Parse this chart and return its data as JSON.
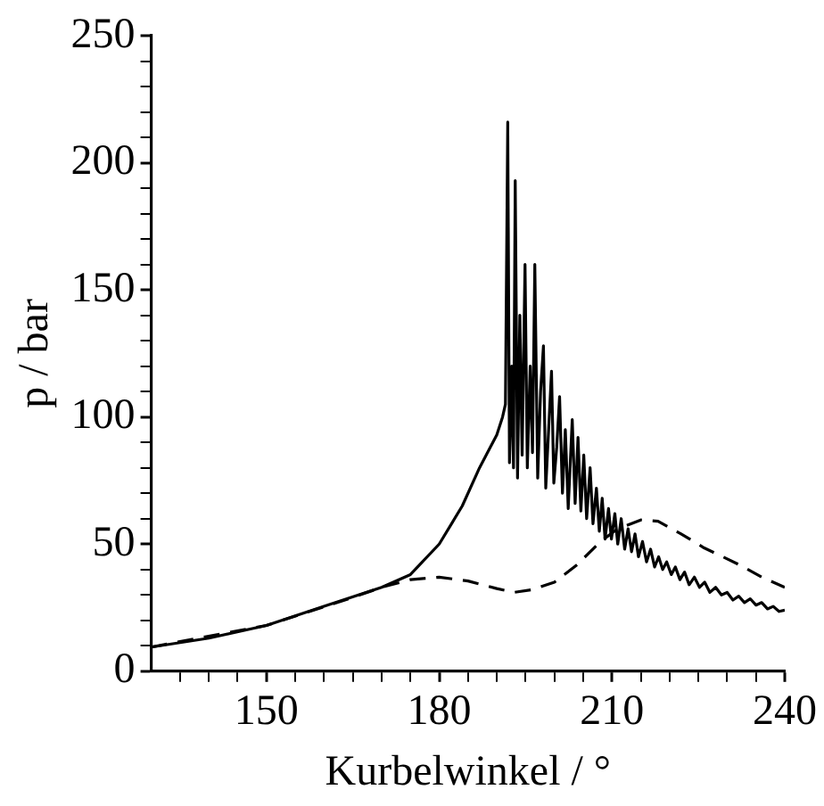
{
  "chart_data": {
    "type": "line",
    "xlabel": "Kurbelwinkel / °",
    "ylabel": "p / bar",
    "xlim": [
      130,
      240
    ],
    "ylim": [
      0,
      250
    ],
    "xticks": [
      {
        "value": 135,
        "label": null
      },
      {
        "value": 140,
        "label": null
      },
      {
        "value": 145,
        "label": null
      },
      150,
      {
        "value": 155,
        "label": null
      },
      {
        "value": 160,
        "label": null
      },
      {
        "value": 165,
        "label": null
      },
      {
        "value": 170,
        "label": null
      },
      {
        "value": 175,
        "label": null
      },
      180,
      {
        "value": 185,
        "label": null
      },
      {
        "value": 190,
        "label": null
      },
      {
        "value": 195,
        "label": null
      },
      {
        "value": 200,
        "label": null
      },
      {
        "value": 205,
        "label": null
      },
      210,
      {
        "value": 215,
        "label": null
      },
      {
        "value": 220,
        "label": null
      },
      {
        "value": 225,
        "label": null
      },
      {
        "value": 230,
        "label": null
      },
      {
        "value": 235,
        "label": null
      },
      240
    ],
    "yticks": [
      0,
      {
        "value": 10,
        "label": null
      },
      {
        "value": 20,
        "label": null
      },
      {
        "value": 30,
        "label": null
      },
      {
        "value": 40,
        "label": null
      },
      50,
      {
        "value": 60,
        "label": null
      },
      {
        "value": 70,
        "label": null
      },
      {
        "value": 80,
        "label": null
      },
      {
        "value": 90,
        "label": null
      },
      100,
      {
        "value": 110,
        "label": null
      },
      {
        "value": 120,
        "label": null
      },
      {
        "value": 130,
        "label": null
      },
      {
        "value": 140,
        "label": null
      },
      150,
      {
        "value": 160,
        "label": null
      },
      {
        "value": 170,
        "label": null
      },
      {
        "value": 180,
        "label": null
      },
      {
        "value": 190,
        "label": null
      },
      200,
      {
        "value": 210,
        "label": null
      },
      {
        "value": 220,
        "label": null
      },
      {
        "value": 230,
        "label": null
      },
      {
        "value": 240,
        "label": null
      },
      250
    ],
    "grid": false,
    "legend": false,
    "marker": "none",
    "series": [
      {
        "color": "#000000",
        "line_style": "solid",
        "x": [
          130,
          140,
          150,
          160,
          170,
          175,
          180,
          184,
          187,
          190,
          191,
          191.5,
          191.9,
          192.2,
          192.6,
          192.9,
          193.2,
          193.6,
          194.0,
          194.4,
          194.9,
          195.3,
          195.8,
          196.2,
          196.6,
          197.1,
          197.6,
          198.1,
          198.5,
          199.0,
          199.5,
          199.9,
          200.4,
          200.9,
          201.4,
          201.9,
          202.4,
          203.1,
          203.6,
          204.1,
          204.6,
          205.1,
          205.6,
          206.2,
          206.7,
          207.3,
          207.8,
          208.3,
          208.8,
          209.4,
          209.9,
          210.5,
          211,
          211.6,
          212.2,
          212.8,
          213.4,
          214,
          214.6,
          215.3,
          216,
          216.7,
          217.4,
          218.1,
          218.8,
          219.5,
          220.3,
          221,
          221.8,
          222.6,
          223.4,
          224.3,
          225.2,
          226.1,
          227,
          228,
          229,
          230,
          231,
          232,
          233,
          234,
          235,
          236,
          237,
          238,
          239,
          240
        ],
        "values": [
          9.5,
          13,
          18,
          25.5,
          33,
          38,
          50,
          65,
          80,
          93,
          100,
          105,
          216,
          82,
          120,
          80,
          193,
          76,
          140,
          85,
          160,
          80,
          120,
          86,
          160,
          76,
          110,
          128,
          72,
          95,
          118,
          74,
          88,
          108,
          70,
          95,
          64,
          99,
          66,
          92,
          63,
          85,
          60,
          80,
          58,
          72,
          55,
          68,
          52,
          64,
          52,
          62,
          50,
          60,
          48,
          56,
          47,
          54,
          45,
          51,
          43,
          48,
          41,
          45,
          40,
          43,
          38,
          41,
          36,
          39,
          34,
          37,
          33,
          35,
          31,
          33,
          30,
          31,
          28,
          29.5,
          27,
          28.5,
          26,
          27,
          24.5,
          25.5,
          23.5,
          24
        ]
      },
      {
        "color": "#000000",
        "line_style": "dashed",
        "x": [
          130,
          150,
          165,
          170,
          175,
          180,
          185,
          190,
          193,
          196,
          200,
          204,
          208,
          211,
          215,
          218,
          222,
          226,
          232,
          236,
          240
        ],
        "values": [
          9.5,
          18,
          29,
          33,
          36,
          37,
          35.5,
          32.5,
          31,
          32,
          35,
          42,
          51,
          56,
          59.5,
          59,
          54,
          48.5,
          42,
          37,
          33
        ]
      }
    ]
  }
}
